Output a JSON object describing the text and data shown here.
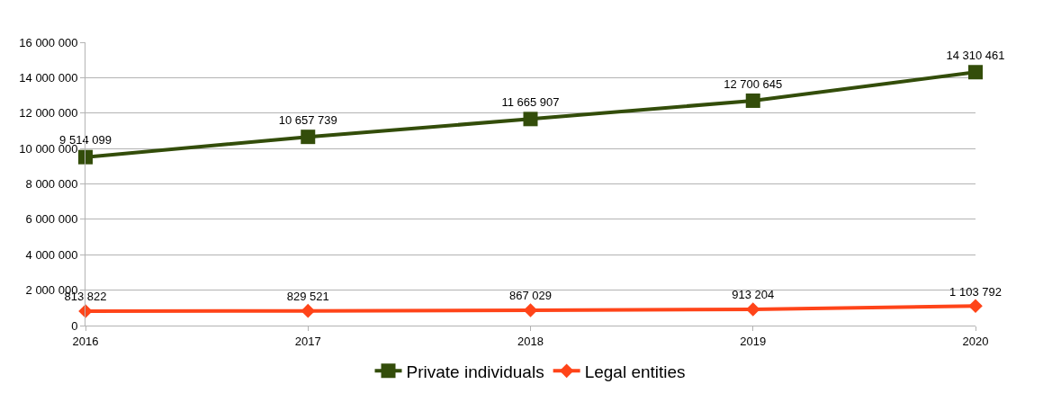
{
  "chart_data": {
    "type": "line",
    "x": [
      2016,
      2017,
      2018,
      2019,
      2020
    ],
    "xlim": [
      2016,
      2020
    ],
    "xticks": [
      2016,
      2017,
      2018,
      2019,
      2020
    ],
    "ylim": [
      0,
      16000000
    ],
    "yticks": [
      0,
      {
        "value": 2000000,
        "label": "2 000 000"
      },
      {
        "value": 4000000,
        "label": "4 000 000"
      },
      {
        "value": 6000000,
        "label": "6 000 000"
      },
      {
        "value": 8000000,
        "label": "8 000 000"
      },
      {
        "value": 10000000,
        "label": "10 000 000"
      },
      {
        "value": 12000000,
        "label": "12 000 000"
      },
      {
        "value": 14000000,
        "label": "14 000 000"
      },
      {
        "value": 16000000,
        "label": "16 000 000"
      }
    ],
    "grid": "y",
    "legend": "bottom",
    "line_style": "solid",
    "series": [
      {
        "name": "Private individuals",
        "color": "#334d0a",
        "marker": "square",
        "values": [
          9514099,
          10657739,
          11665907,
          12700645,
          14310461
        ],
        "value_labels": [
          "9 514 099",
          "10 657 739",
          "11 665 907",
          "12 700 645",
          "14 310 461"
        ]
      },
      {
        "name": "Legal entities",
        "color": "#ff4419",
        "marker": "diamond",
        "values": [
          813822,
          829521,
          867029,
          913204,
          1103792
        ],
        "value_labels": [
          "813 822",
          "829 521",
          "867 029",
          "913 204",
          "1 103 792"
        ]
      }
    ]
  }
}
